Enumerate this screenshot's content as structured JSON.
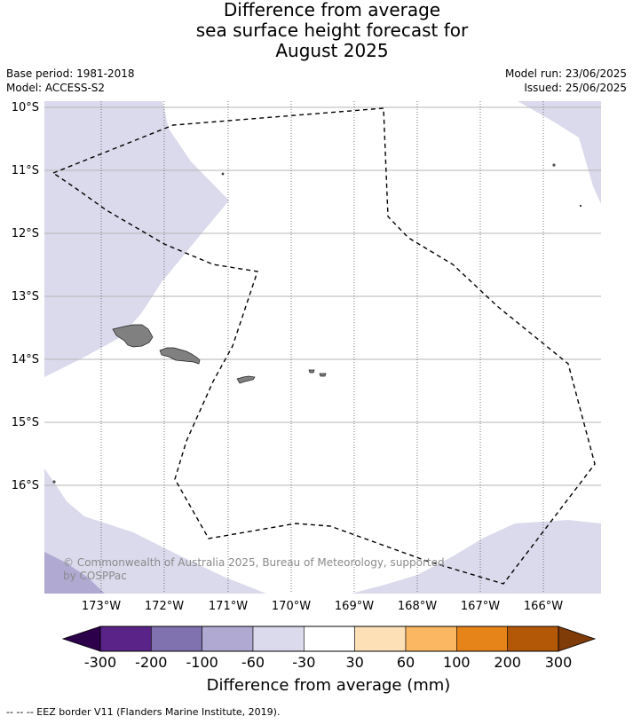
{
  "title": {
    "line1": "Difference from average",
    "line2": "sea surface height forecast for",
    "line3": "August 2025"
  },
  "meta": {
    "base_period": "Base period: 1981-2018",
    "model": "Model: ACCESS-S2",
    "model_run": "Model run: 23/06/2025",
    "issued": "Issued: 25/06/2025"
  },
  "map": {
    "lat_labels": [
      "10°S",
      "11°S",
      "12°S",
      "13°S",
      "14°S",
      "15°S",
      "16°S"
    ],
    "lon_labels": [
      "173°W",
      "172°W",
      "171°W",
      "170°W",
      "169°W",
      "168°W",
      "167°W",
      "166°W"
    ],
    "copyright_line1": "© Commonwealth of Australia 2025, Bureau of Meteorology, supported",
    "copyright_line2": "by COSPPac"
  },
  "colorbar": {
    "tick_labels": [
      "-300",
      "-200",
      "-100",
      "-60",
      "-30",
      "30",
      "60",
      "100",
      "200",
      "300"
    ],
    "colors": [
      "#5a2387",
      "#8072ae",
      "#b0aad3",
      "#dadaec",
      "#ffffff",
      "#fde0b5",
      "#fbb761",
      "#e6841a",
      "#b35806"
    ],
    "under_color": "#2d004b",
    "over_color": "#7f3b08",
    "label": "Difference from average (mm)"
  },
  "footnote": "--  --  -- EEZ border V11 (Flanders Marine Institute, 2019)."
}
